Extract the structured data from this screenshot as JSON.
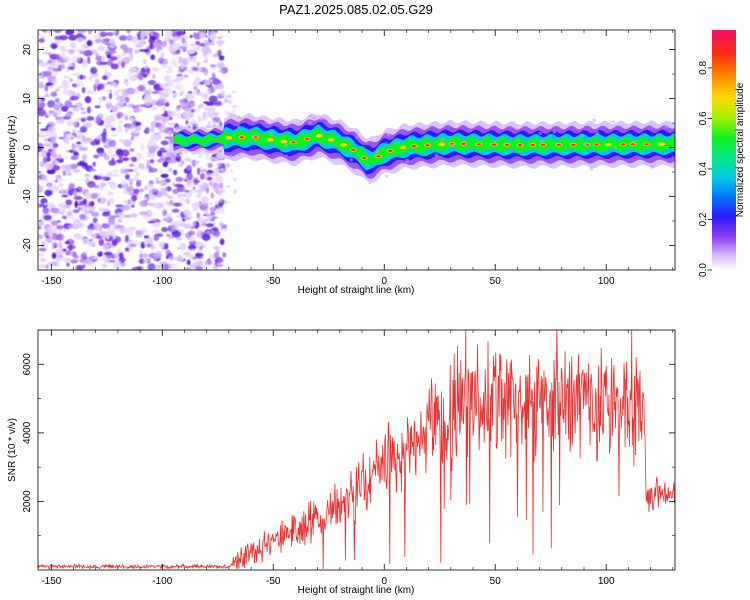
{
  "title": "PAZ1.2025.085.02.05.G29",
  "chart_data": [
    {
      "type": "heatmap",
      "title": "PAZ1.2025.085.02.05.G29",
      "xlabel": "Height of straight line (km)",
      "ylabel": "Frequency (Hz)",
      "xlim": [
        -156,
        131
      ],
      "ylim": [
        -25,
        24
      ],
      "xticks": [
        -150,
        -100,
        -50,
        0,
        50,
        100
      ],
      "yticks": [
        -20,
        -10,
        0,
        10,
        20
      ],
      "colorbar": {
        "label": "Normalized spectral amplitude",
        "range": [
          0,
          0.95
        ],
        "ticks": [
          0.0,
          0.2,
          0.4,
          0.6,
          0.8
        ]
      },
      "noise_region_x": [
        -156,
        -72
      ],
      "signal_ridge": {
        "x": [
          -95,
          -80,
          -70,
          -60,
          -50,
          -40,
          -30,
          -20,
          -12,
          -8,
          -5,
          0,
          10,
          30,
          60,
          90,
          131
        ],
        "freq": [
          1.5,
          1.5,
          2,
          2.2,
          1.5,
          1,
          2.5,
          1,
          -1,
          -2.5,
          -2.5,
          -1,
          0.2,
          0.8,
          0.5,
          0.6,
          0.7
        ]
      }
    },
    {
      "type": "line",
      "xlabel": "Height of straight line (km)",
      "ylabel": "SNR (10 * v/v)",
      "xlim": [
        -156,
        131
      ],
      "ylim": [
        0,
        7000
      ],
      "xticks": [
        -150,
        -100,
        -50,
        0,
        50,
        100
      ],
      "yticks": [
        2000,
        4000,
        6000
      ],
      "series": [
        {
          "name": "SNR",
          "color": "#e83030",
          "envelope": {
            "x": [
              -156,
              -70,
              -66,
              -50,
              -25,
              0,
              15,
              25,
              35,
              50,
              80,
              110,
              117,
              118,
              125,
              131
            ],
            "y": [
              100,
              100,
              300,
              800,
              1700,
              3000,
              3800,
              4400,
              4800,
              4900,
              4900,
              4800,
              4700,
              2200,
              2200,
              2200
            ]
          }
        }
      ]
    }
  ]
}
